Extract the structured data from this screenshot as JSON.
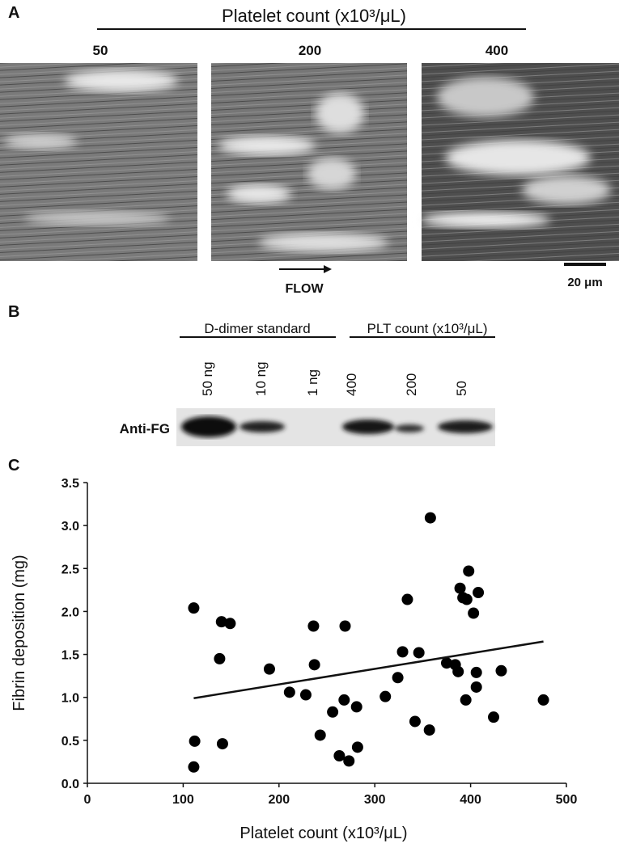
{
  "panel_a": {
    "label": "A",
    "title": "Platelet count (x10³/μL)",
    "columns": [
      "50",
      "200",
      "400"
    ],
    "flow_label": "FLOW",
    "scale_bar": "20 μm"
  },
  "panel_b": {
    "label": "B",
    "groups": [
      "D-dimer standard",
      "PLT count (x10³/μL)"
    ],
    "lanes": [
      "50 ng",
      "10 ng",
      "1 ng",
      "400",
      "200",
      "50"
    ],
    "row_label": "Anti-FG"
  },
  "chart_data": {
    "type": "scatter",
    "panel_label": "C",
    "x_label": "Platelet count (x10³/μL)",
    "y_label": "Fibrin deposition (mg)",
    "xlim": [
      0,
      500
    ],
    "xticks": [
      0,
      100,
      200,
      300,
      400,
      500
    ],
    "ylim": [
      0,
      3.5
    ],
    "yticks": [
      {
        "value": 0,
        "label": "0.0"
      },
      0.5,
      {
        "value": 1,
        "label": "1.0"
      },
      1.5,
      {
        "value": 2,
        "label": "2.0"
      },
      2.5,
      {
        "value": 3,
        "label": "3.0"
      },
      3.5
    ],
    "x": [
      111,
      112,
      111,
      138,
      140,
      141,
      149,
      190,
      211,
      228,
      236,
      237,
      243,
      256,
      263,
      268,
      269,
      273,
      281,
      282,
      311,
      324,
      329,
      334,
      342,
      346,
      357,
      358,
      375,
      384,
      387,
      389,
      392,
      395,
      396,
      398,
      403,
      406,
      406,
      408,
      424,
      432,
      476
    ],
    "series": [
      {
        "color": "#000000",
        "values": [
          2.04,
          0.49,
          0.19,
          1.45,
          1.88,
          0.46,
          1.86,
          1.33,
          1.06,
          1.03,
          1.83,
          1.38,
          0.56,
          0.83,
          0.32,
          0.97,
          1.83,
          0.26,
          0.89,
          0.42,
          1.01,
          1.23,
          1.53,
          2.14,
          0.72,
          1.52,
          0.62,
          3.09,
          1.4,
          1.38,
          1.3,
          2.27,
          2.16,
          0.97,
          2.14,
          2.47,
          1.98,
          1.29,
          1.12,
          2.22,
          0.77,
          1.31,
          0.97
        ]
      }
    ],
    "trendline": {
      "x": [
        111,
        476
      ],
      "y": [
        0.99,
        1.65
      ]
    }
  }
}
